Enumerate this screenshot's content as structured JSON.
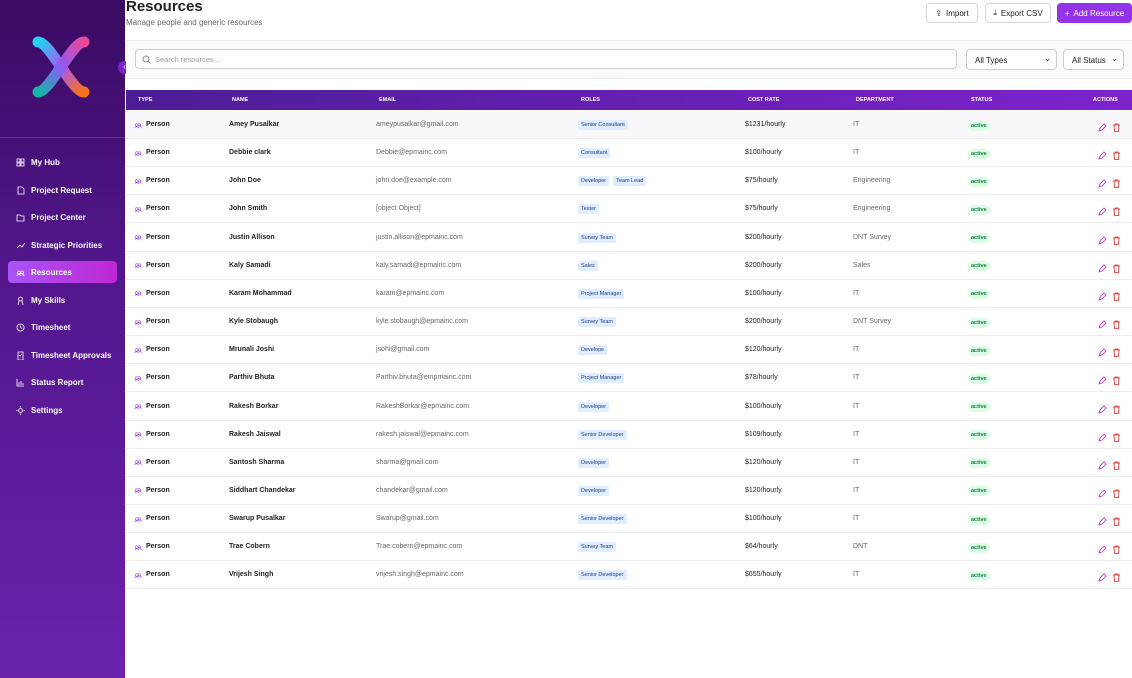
{
  "header": {
    "title": "Resources",
    "subtitle": "Manage people and generic resources"
  },
  "actions": [
    "Import",
    "Export CSV",
    "Add Resource"
  ],
  "nav": [
    "My Hub",
    "Project Request",
    "Project Center",
    "Strategic Priorities",
    "Resources",
    "My Skills",
    "Timesheet",
    "Timesheet Approvals",
    "Status Report",
    "Settings"
  ],
  "search_placeholder": "Search resources...",
  "filters": [
    "All Types",
    "All Status"
  ],
  "table": {
    "columns": [
      "TYPE",
      "NAME",
      "EMAIL",
      "ROLES",
      "COST RATE",
      "DEPARTMENT",
      "STATUS",
      "ACTIONS"
    ],
    "rows": [
      {
        "type": "Person",
        "name": "Amey Pusalkar",
        "email": "ameypusalkar@gmail.com",
        "roles": [
          "Senior Consultant"
        ],
        "cost_rate": "$1231/hourly",
        "department": "IT",
        "status": "active"
      },
      {
        "type": "Person",
        "name": "Debbie clark",
        "email": "Debbie@epmainc.com",
        "roles": [
          "Consultant"
        ],
        "cost_rate": "$100/hourly",
        "department": "IT",
        "status": "active"
      },
      {
        "type": "Person",
        "name": "John Doe",
        "email": "john.doe@example.com",
        "roles": [
          "Developer",
          "Team Lead"
        ],
        "cost_rate": "$75/hourly",
        "department": "Engineering",
        "status": "active"
      },
      {
        "type": "Person",
        "name": "John Smith",
        "email": "[object Object]",
        "roles": [
          "Tester"
        ],
        "cost_rate": "$75/hourly",
        "department": "Engineering",
        "status": "active"
      },
      {
        "type": "Person",
        "name": "Justin Allison",
        "email": "justin.allison@epmainc.com",
        "roles": [
          "Survey Team"
        ],
        "cost_rate": "$200/hourly",
        "department": "DNT Survey",
        "status": "active"
      },
      {
        "type": "Person",
        "name": "Kaly Samadi",
        "email": "kaly.samadi@epmainc.com",
        "roles": [
          "Sales"
        ],
        "cost_rate": "$200/hourly",
        "department": "Sales",
        "status": "active"
      },
      {
        "type": "Person",
        "name": "Karam Mohammad",
        "email": "karam@epmainc.com",
        "roles": [
          "Project Manager"
        ],
        "cost_rate": "$100/hourly",
        "department": "IT",
        "status": "active"
      },
      {
        "type": "Person",
        "name": "Kyle Stobaugh",
        "email": "kyle.stobaugh@epmainc.com",
        "roles": [
          "Survey Team"
        ],
        "cost_rate": "$200/hourly",
        "department": "DNT Survey",
        "status": "active"
      },
      {
        "type": "Person",
        "name": "Mrunali Joshi",
        "email": "jsohi@gmail.com",
        "roles": [
          "Develope"
        ],
        "cost_rate": "$120/hourly",
        "department": "IT",
        "status": "active"
      },
      {
        "type": "Person",
        "name": "Parthiv Bhuta",
        "email": "Parthiv.bhuta@empmainc.com",
        "roles": [
          "Project Manager"
        ],
        "cost_rate": "$78/hourly",
        "department": "IT",
        "status": "active"
      },
      {
        "type": "Person",
        "name": "Rakesh Borkar",
        "email": "RakeshBorkar@epmainc.com",
        "roles": [
          "Developer"
        ],
        "cost_rate": "$100/hourly",
        "department": "IT",
        "status": "active"
      },
      {
        "type": "Person",
        "name": "Rakesh Jaiswal",
        "email": "rakesh.jaiswal@epmainc.com",
        "roles": [
          "Senior Developer"
        ],
        "cost_rate": "$109/hourly",
        "department": "IT",
        "status": "active"
      },
      {
        "type": "Person",
        "name": "Santosh Sharma",
        "email": "sharma@gmail.com",
        "roles": [
          "Developer"
        ],
        "cost_rate": "$120/hourly",
        "department": "IT",
        "status": "active"
      },
      {
        "type": "Person",
        "name": "Siddhart Chandekar",
        "email": "chandekar@gmail.com",
        "roles": [
          "Developer"
        ],
        "cost_rate": "$120/hourly",
        "department": "IT",
        "status": "active"
      },
      {
        "type": "Person",
        "name": "Swarup Pusalkar",
        "email": "Swarup@gmail.com",
        "roles": [
          "Senior Developer"
        ],
        "cost_rate": "$100/hourly",
        "department": "IT",
        "status": "active"
      },
      {
        "type": "Person",
        "name": "Trae Cobern",
        "email": "Trae.cobern@epmainc.com",
        "roles": [
          "Survey Team"
        ],
        "cost_rate": "$64/hourly",
        "department": "DNT",
        "status": "active"
      },
      {
        "type": "Person",
        "name": "Vrijesh Singh",
        "email": "vrijesh.singh@epmainc.com",
        "roles": [
          "Senior Developer"
        ],
        "cost_rate": "$655/hourly",
        "department": "IT",
        "status": "active"
      }
    ]
  }
}
